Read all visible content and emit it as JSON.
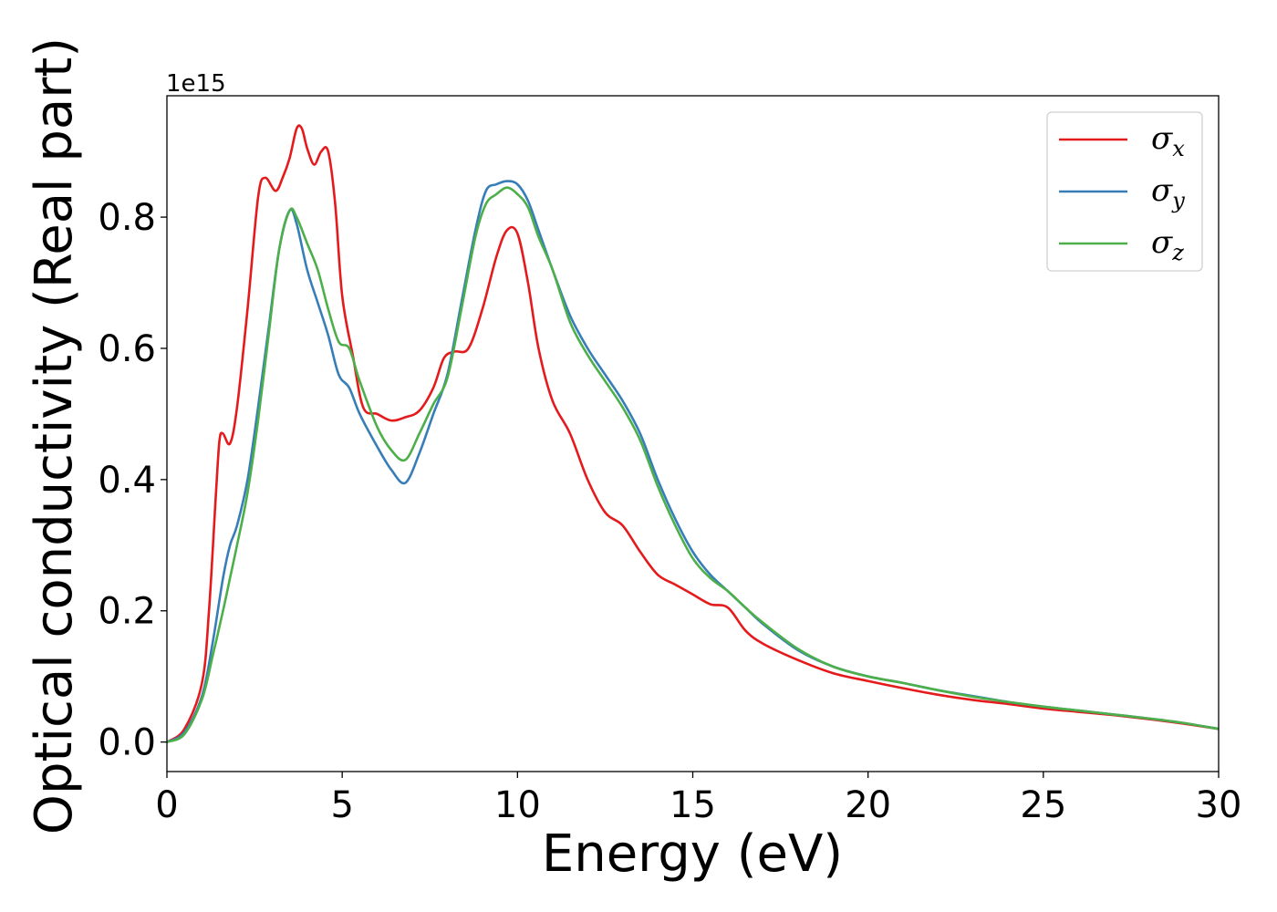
{
  "chart_data": {
    "type": "line",
    "xlabel": "Energy (eV)",
    "ylabel": "Optical conductivity (Real part)",
    "y_offset_label": "1e15",
    "xlim": [
      0,
      30
    ],
    "ylim": [
      -0.045,
      0.985
    ],
    "x_ticks": [
      0,
      5,
      10,
      15,
      20,
      25,
      30
    ],
    "x_tick_labels": [
      "0",
      "5",
      "10",
      "15",
      "20",
      "25",
      "30"
    ],
    "y_ticks": [
      0.0,
      0.2,
      0.4,
      0.6,
      0.8
    ],
    "y_tick_labels": [
      "0.0",
      "0.2",
      "0.4",
      "0.6",
      "0.8"
    ],
    "grid": false,
    "legend_position": "top-right",
    "series": [
      {
        "name": "σx",
        "base": "σ",
        "sub": "x",
        "color": "#e41a1c",
        "x": [
          0,
          0.5,
          1,
          1.2,
          1.4,
          1.5,
          1.6,
          1.8,
          2,
          2.3,
          2.6,
          2.8,
          3.1,
          3.3,
          3.5,
          3.7,
          3.85,
          4,
          4.2,
          4.4,
          4.6,
          4.8,
          5,
          5.3,
          5.6,
          6,
          6.4,
          6.8,
          7.2,
          7.6,
          7.9,
          8.2,
          8.6,
          9,
          9.4,
          9.7,
          10,
          10.3,
          10.6,
          11,
          11.5,
          12,
          12.5,
          13,
          13.5,
          14,
          14.5,
          15,
          15.5,
          16,
          16.5,
          17,
          18,
          19,
          20,
          21,
          22,
          23,
          24,
          25,
          26,
          27,
          28,
          29,
          30
        ],
        "y": [
          0,
          0.02,
          0.09,
          0.2,
          0.38,
          0.46,
          0.47,
          0.455,
          0.51,
          0.66,
          0.83,
          0.86,
          0.84,
          0.86,
          0.89,
          0.935,
          0.935,
          0.905,
          0.88,
          0.9,
          0.9,
          0.82,
          0.68,
          0.59,
          0.51,
          0.5,
          0.49,
          0.495,
          0.505,
          0.54,
          0.585,
          0.595,
          0.6,
          0.66,
          0.74,
          0.78,
          0.775,
          0.7,
          0.6,
          0.52,
          0.47,
          0.4,
          0.35,
          0.33,
          0.29,
          0.255,
          0.24,
          0.225,
          0.21,
          0.205,
          0.17,
          0.15,
          0.125,
          0.105,
          0.093,
          0.082,
          0.072,
          0.064,
          0.058,
          0.051,
          0.046,
          0.041,
          0.035,
          0.028,
          0.02
        ]
      },
      {
        "name": "σy",
        "base": "σ",
        "sub": "y",
        "color": "#377eb8",
        "x": [
          0,
          0.5,
          1,
          1.3,
          1.6,
          1.8,
          2,
          2.3,
          2.6,
          2.9,
          3.2,
          3.5,
          3.7,
          4,
          4.3,
          4.6,
          4.9,
          5.2,
          5.5,
          6,
          6.4,
          6.8,
          7.2,
          7.6,
          8,
          8.4,
          8.8,
          9.1,
          9.4,
          9.7,
          10,
          10.3,
          10.6,
          11,
          11.5,
          12,
          12.5,
          13,
          13.5,
          14,
          14.5,
          15,
          15.5,
          16,
          16.5,
          17,
          18,
          19,
          20,
          21,
          22,
          23,
          24,
          25,
          26,
          27,
          28,
          29,
          30
        ],
        "y": [
          0,
          0.015,
          0.07,
          0.15,
          0.25,
          0.3,
          0.33,
          0.4,
          0.51,
          0.63,
          0.75,
          0.81,
          0.79,
          0.72,
          0.67,
          0.62,
          0.56,
          0.54,
          0.5,
          0.45,
          0.415,
          0.395,
          0.44,
          0.5,
          0.56,
          0.67,
          0.78,
          0.84,
          0.85,
          0.855,
          0.85,
          0.825,
          0.78,
          0.72,
          0.65,
          0.6,
          0.56,
          0.52,
          0.47,
          0.4,
          0.34,
          0.29,
          0.255,
          0.23,
          0.205,
          0.18,
          0.14,
          0.115,
          0.1,
          0.09,
          0.079,
          0.07,
          0.061,
          0.054,
          0.048,
          0.042,
          0.036,
          0.029,
          0.02
        ]
      },
      {
        "name": "σz",
        "base": "σ",
        "sub": "z",
        "color": "#4daf4a",
        "x": [
          0,
          0.5,
          1,
          1.3,
          1.6,
          1.8,
          2,
          2.3,
          2.6,
          2.9,
          3.2,
          3.5,
          3.7,
          4,
          4.3,
          4.6,
          4.9,
          5.2,
          5.5,
          6,
          6.4,
          6.8,
          7.2,
          7.6,
          8,
          8.4,
          8.8,
          9.1,
          9.4,
          9.7,
          10,
          10.3,
          10.6,
          11,
          11.5,
          12,
          12.5,
          13,
          13.5,
          14,
          14.5,
          15,
          15.5,
          16,
          16.5,
          17,
          18,
          19,
          20,
          21,
          22,
          23,
          24,
          25,
          26,
          27,
          28,
          29,
          30
        ],
        "y": [
          0,
          0.012,
          0.065,
          0.13,
          0.2,
          0.25,
          0.3,
          0.38,
          0.49,
          0.62,
          0.75,
          0.81,
          0.8,
          0.76,
          0.72,
          0.66,
          0.61,
          0.6,
          0.55,
          0.48,
          0.445,
          0.43,
          0.47,
          0.515,
          0.555,
          0.66,
          0.77,
          0.82,
          0.835,
          0.845,
          0.835,
          0.815,
          0.77,
          0.72,
          0.64,
          0.59,
          0.55,
          0.51,
          0.46,
          0.39,
          0.33,
          0.28,
          0.25,
          0.23,
          0.205,
          0.182,
          0.142,
          0.115,
          0.1,
          0.09,
          0.079,
          0.069,
          0.061,
          0.054,
          0.048,
          0.042,
          0.036,
          0.029,
          0.02
        ]
      }
    ]
  }
}
